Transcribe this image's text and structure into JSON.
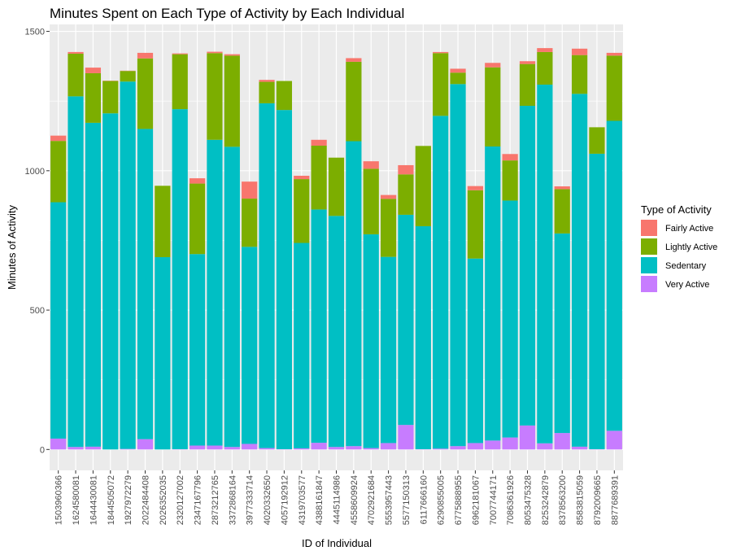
{
  "chart_data": {
    "type": "bar",
    "stacked": true,
    "title": "Minutes Spent on Each Type of Activity by Each Individual",
    "xlabel": "ID of Individual",
    "ylabel": "Minutes of Activity",
    "ylim": [
      -75,
      1525
    ],
    "yticks": [
      0,
      500,
      1000,
      1500
    ],
    "grid": true,
    "legend": {
      "title": "Type of Activity",
      "position": "right"
    },
    "categories": [
      "1503960366",
      "1624580081",
      "1644430081",
      "1844505072",
      "1927972279",
      "2022484408",
      "2026352035",
      "2320127002",
      "2347167796",
      "2873212765",
      "3372868164",
      "3977333714",
      "4020332650",
      "4057192912",
      "4319703577",
      "4388161847",
      "4445114986",
      "4558609924",
      "4702921684",
      "5553957443",
      "5577150313",
      "6117666160",
      "6290855005",
      "6775888955",
      "6962181067",
      "7007744171",
      "7086361926",
      "8053475328",
      "8253242879",
      "8378563200",
      "8583815059",
      "8792009665",
      "8877689391"
    ],
    "series": [
      {
        "name": "Very Active",
        "color": "#C77CFF",
        "values": [
          39,
          9,
          10,
          0,
          2,
          37,
          0,
          1,
          14,
          14,
          9,
          20,
          5,
          1,
          4,
          24,
          9,
          12,
          5,
          23,
          88,
          1,
          3,
          12,
          23,
          32,
          43,
          86,
          22,
          59,
          10,
          1,
          67
        ]
      },
      {
        "name": "Sedentary",
        "color": "#00BFC4",
        "values": [
          848,
          1258,
          1162,
          1206,
          1318,
          1113,
          690,
          1220,
          687,
          1097,
          1077,
          707,
          1237,
          1217,
          737,
          837,
          829,
          1094,
          767,
          668,
          754,
          800,
          1194,
          1299,
          662,
          1055,
          850,
          1147,
          1287,
          716,
          1266,
          1060,
          1112
        ]
      },
      {
        "name": "Lightly Active",
        "color": "#7CAE00",
        "values": [
          220,
          153,
          178,
          116,
          38,
          253,
          256,
          197,
          253,
          311,
          327,
          173,
          77,
          104,
          229,
          229,
          209,
          285,
          235,
          208,
          145,
          288,
          225,
          41,
          245,
          284,
          144,
          150,
          117,
          159,
          139,
          95,
          234
        ]
      },
      {
        "name": "Fairly Active",
        "color": "#F8766D",
        "values": [
          19,
          6,
          20,
          1,
          1,
          20,
          0,
          3,
          19,
          5,
          5,
          61,
          7,
          0,
          12,
          21,
          0,
          13,
          27,
          14,
          33,
          0,
          4,
          14,
          15,
          16,
          23,
          10,
          14,
          10,
          23,
          0,
          10
        ]
      }
    ]
  }
}
